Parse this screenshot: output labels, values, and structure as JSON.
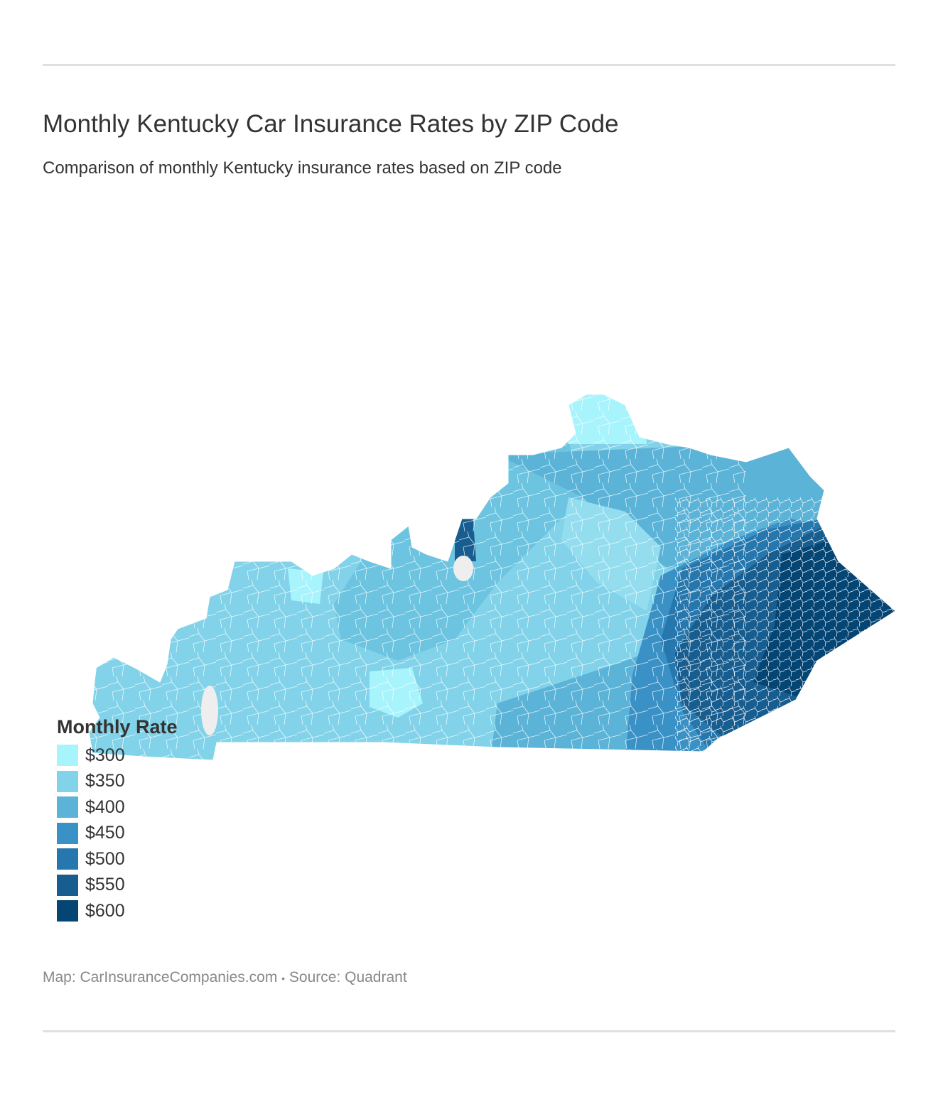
{
  "title": "Monthly Kentucky Car Insurance Rates by ZIP Code",
  "subtitle": "Comparison of monthly Kentucky insurance rates based on ZIP code",
  "legend": {
    "title": "Monthly Rate",
    "items": [
      {
        "label": "$300",
        "color": "#a8f4fc"
      },
      {
        "label": "$350",
        "color": "#82d3e9"
      },
      {
        "label": "$400",
        "color": "#5bb3d7"
      },
      {
        "label": "$450",
        "color": "#3a91c5"
      },
      {
        "label": "$500",
        "color": "#2677ad"
      },
      {
        "label": "$550",
        "color": "#175d8f"
      },
      {
        "label": "$600",
        "color": "#054574"
      }
    ]
  },
  "footer": {
    "map_credit": "Map: CarInsuranceCompanies.com",
    "separator": "•",
    "source": "Source: Quadrant"
  }
}
